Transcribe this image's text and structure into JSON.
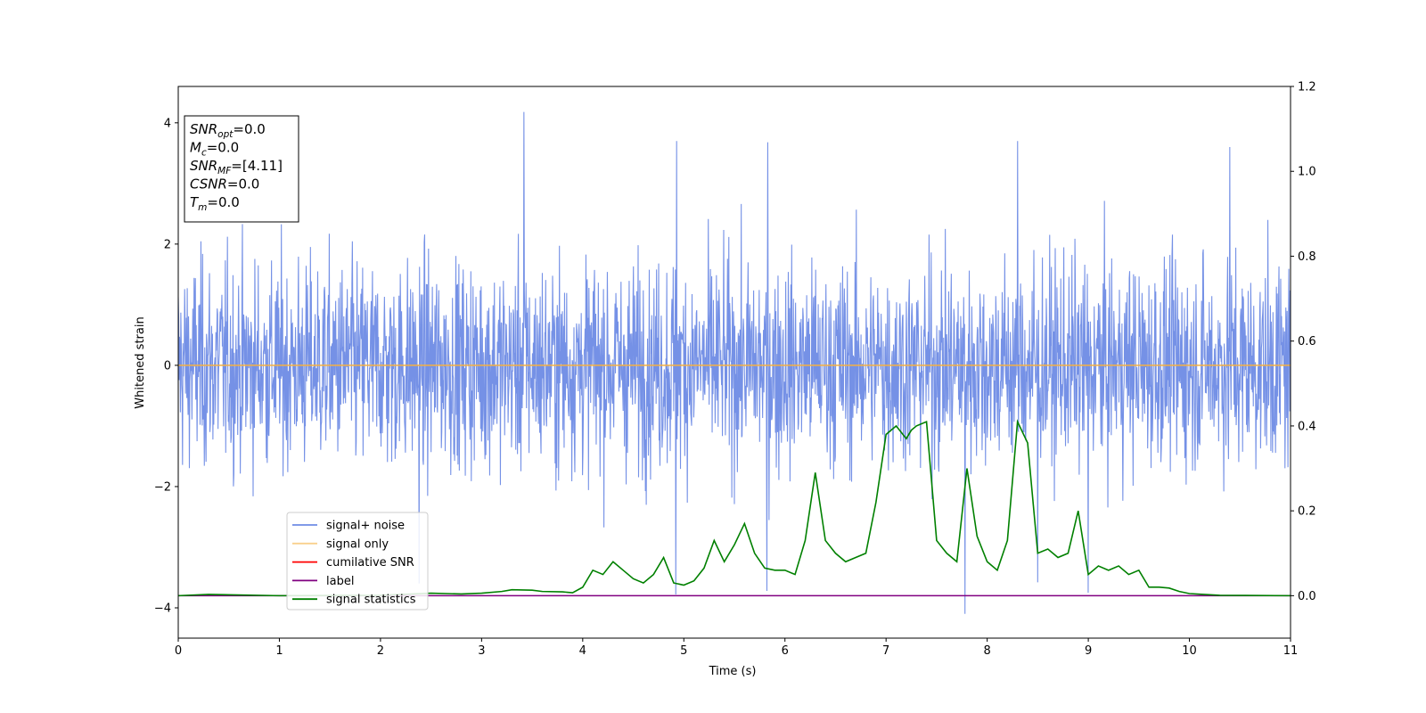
{
  "chart_data": {
    "type": "line",
    "xlabel": "Time (s)",
    "ylabel": "Whitened strain",
    "xlim": [
      0,
      11
    ],
    "ylim": [
      -4.5,
      4.6
    ],
    "y2lim": [
      -0.1,
      1.2
    ],
    "x_ticks": [
      0,
      1,
      2,
      3,
      4,
      5,
      6,
      7,
      8,
      9,
      10,
      11
    ],
    "y_ticks": [
      -4,
      -2,
      0,
      2,
      4
    ],
    "y2_ticks": [
      "0.0",
      "0.2",
      "0.4",
      "0.6",
      "0.8",
      "1.0",
      "1.2"
    ],
    "legend_placement": "lower-left",
    "grid": false,
    "info_box": [
      {
        "base": "SNR",
        "sub": "opt",
        "value": "=0.0"
      },
      {
        "base": "M",
        "sub": "c",
        "value": "=0.0"
      },
      {
        "base": "SNR",
        "sub": "MF",
        "value": "=[4.11]"
      },
      {
        "base": "CSNR",
        "sub": "",
        "value": "=0.0"
      },
      {
        "base": "T",
        "sub": "m",
        "value": "=0.0"
      }
    ],
    "series": [
      {
        "name": "signal+ noise",
        "axis": "left",
        "color": "#6e8be5",
        "description_noise": {
          "typical_amplitude": 2.0,
          "max": 4.18,
          "min": -4.1
        },
        "peaks": [
          [
            3.42,
            4.18
          ],
          [
            4.93,
            3.7
          ],
          [
            5.83,
            3.68
          ],
          [
            8.3,
            3.7
          ],
          [
            10.4,
            3.6
          ],
          [
            2.38,
            -3.6
          ],
          [
            7.78,
            -4.1
          ],
          [
            8.5,
            -3.58
          ],
          [
            4.92,
            -3.78
          ],
          [
            5.82,
            -3.72
          ],
          [
            9.0,
            -3.75
          ]
        ]
      },
      {
        "name": "signal only",
        "axis": "left",
        "color": "#f5b041",
        "x": [
          0,
          11
        ],
        "y": [
          0,
          0
        ]
      },
      {
        "name": "cumilative SNR",
        "axis": "right",
        "color": "#ff0000",
        "x": [],
        "y": []
      },
      {
        "name": "label",
        "axis": "right",
        "color": "#800080",
        "x": [
          0,
          11
        ],
        "y": [
          0,
          0
        ]
      },
      {
        "name": "signal statistics",
        "axis": "right",
        "color": "#008000",
        "x": [
          0,
          0.3,
          1.0,
          2.0,
          2.5,
          2.8,
          3.0,
          3.2,
          3.3,
          3.5,
          3.6,
          3.8,
          3.9,
          4.0,
          4.1,
          4.2,
          4.3,
          4.4,
          4.5,
          4.6,
          4.7,
          4.8,
          4.9,
          5.0,
          5.1,
          5.2,
          5.3,
          5.4,
          5.5,
          5.6,
          5.7,
          5.8,
          5.9,
          6.0,
          6.1,
          6.2,
          6.3,
          6.4,
          6.5,
          6.6,
          6.7,
          6.8,
          6.9,
          7.0,
          7.1,
          7.2,
          7.25,
          7.3,
          7.4,
          7.5,
          7.6,
          7.7,
          7.8,
          7.9,
          8.0,
          8.1,
          8.2,
          8.3,
          8.4,
          8.5,
          8.6,
          8.7,
          8.8,
          8.9,
          9.0,
          9.1,
          9.2,
          9.3,
          9.4,
          9.5,
          9.6,
          9.7,
          9.8,
          9.9,
          10.0,
          10.3,
          11.0
        ],
        "y": [
          0.0,
          0.003,
          0.0,
          0.001,
          0.006,
          0.004,
          0.006,
          0.01,
          0.014,
          0.013,
          0.01,
          0.009,
          0.007,
          0.02,
          0.06,
          0.05,
          0.08,
          0.06,
          0.04,
          0.03,
          0.05,
          0.09,
          0.03,
          0.025,
          0.035,
          0.065,
          0.13,
          0.08,
          0.12,
          0.17,
          0.1,
          0.065,
          0.06,
          0.06,
          0.05,
          0.13,
          0.29,
          0.13,
          0.1,
          0.08,
          0.09,
          0.1,
          0.22,
          0.38,
          0.4,
          0.37,
          0.39,
          0.4,
          0.41,
          0.13,
          0.1,
          0.08,
          0.3,
          0.14,
          0.08,
          0.06,
          0.13,
          0.41,
          0.36,
          0.1,
          0.11,
          0.09,
          0.1,
          0.2,
          0.05,
          0.07,
          0.06,
          0.07,
          0.05,
          0.06,
          0.02,
          0.02,
          0.018,
          0.01,
          0.005,
          0.001,
          0.0
        ]
      }
    ]
  }
}
